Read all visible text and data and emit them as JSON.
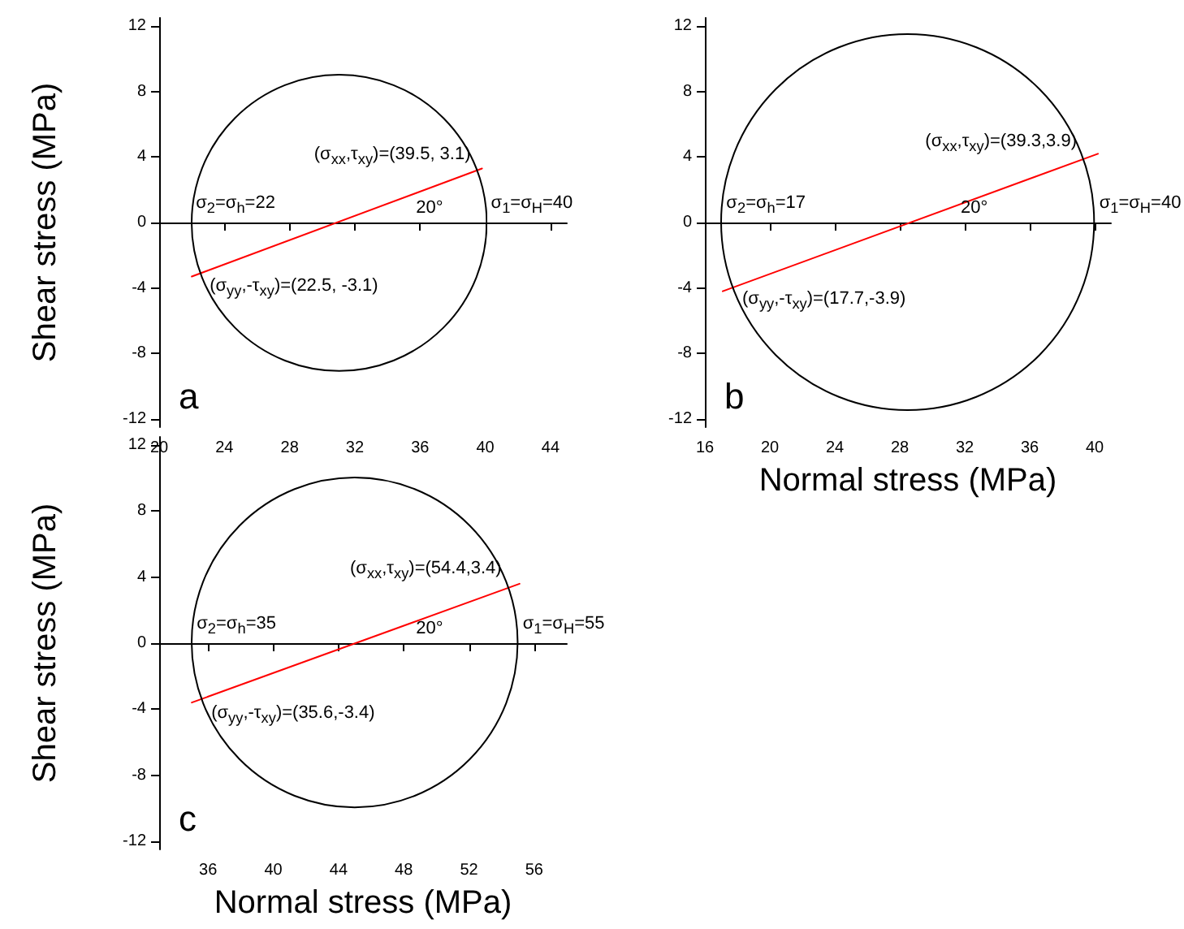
{
  "chart_data": [
    {
      "type": "line",
      "title": "a",
      "ylabel": "Shear stress (MPa)",
      "xlim": [
        20,
        45
      ],
      "xticks": [
        20,
        24,
        28,
        32,
        36,
        40,
        44
      ],
      "ylim": [
        -12.5,
        12.5
      ],
      "yticks": [
        -12,
        -8,
        -4,
        0,
        4,
        8,
        12
      ],
      "marker": "none",
      "series": [
        {
          "color": "#ff0000",
          "x": [
            22,
            39.8
          ],
          "values": [
            -3.3,
            3.3
          ]
        }
      ],
      "annotations": [
        {
          "text": "(σ$_{xx}$,τ$_{xy}$)=(39.5, 3.1)",
          "x": 39.5,
          "y": 3.1
        },
        {
          "text": "(σ$_{yy}$,-τ$_{xy}$)=(22.5, -3.1)",
          "x": 22.5,
          "y": -3.1
        },
        "σ$_{2}$=σ$_{h}$=22",
        "σ$_{1}$=σ$_{H}$=40",
        "20°"
      ]
    },
    {
      "type": "line",
      "title": "b",
      "xlabel": "Normal stress (MPa)",
      "xlim": [
        16,
        41
      ],
      "xticks": [
        16,
        20,
        24,
        28,
        32,
        36,
        40
      ],
      "ylim": [
        -12.5,
        12.5
      ],
      "yticks": [
        -12,
        -8,
        -4,
        0,
        4,
        8,
        12
      ],
      "marker": "none",
      "series": [
        {
          "color": "#ff0000",
          "x": [
            17.1,
            40.2
          ],
          "values": [
            -4.2,
            4.2
          ]
        }
      ],
      "annotations": [
        {
          "text": "(σ$_{xx}$,τ$_{xy}$)=(39.3,3.9)",
          "x": 39.3,
          "y": 3.9
        },
        {
          "text": "(σ$_{yy}$,-τ$_{xy}$)=(17.7,-3.9)",
          "x": 17.7,
          "y": -3.9
        },
        "σ$_{2}$=σ$_{h}$=17",
        "σ$_{1}$=σ$_{H}$=40",
        "20°"
      ]
    },
    {
      "type": "line",
      "title": "c",
      "xlabel": "Normal stress (MPa)",
      "ylabel": "Shear stress (MPa)",
      "xlim": [
        33,
        58
      ],
      "xticks": [
        36,
        40,
        44,
        48,
        52,
        56
      ],
      "ylim": [
        -12.5,
        12.5
      ],
      "yticks": [
        -12,
        -8,
        -4,
        0,
        4,
        8,
        12
      ],
      "marker": "none",
      "series": [
        {
          "color": "#ff0000",
          "x": [
            35,
            55.1
          ],
          "values": [
            -3.6,
            3.6
          ]
        }
      ],
      "annotations": [
        {
          "text": "(σ$_{xx}$,τ$_{xy}$)=(54.4,3.4)",
          "x": 54.4,
          "y": 3.4
        },
        {
          "text": "(σ$_{yy}$,-τ$_{xy}$)=(35.6,-3.4)",
          "x": 35.6,
          "y": -3.4
        },
        "σ$_{2}$=σ$_{h}$=35",
        "σ$_{1}$=σ$_{H}$=55",
        "20°"
      ]
    }
  ]
}
